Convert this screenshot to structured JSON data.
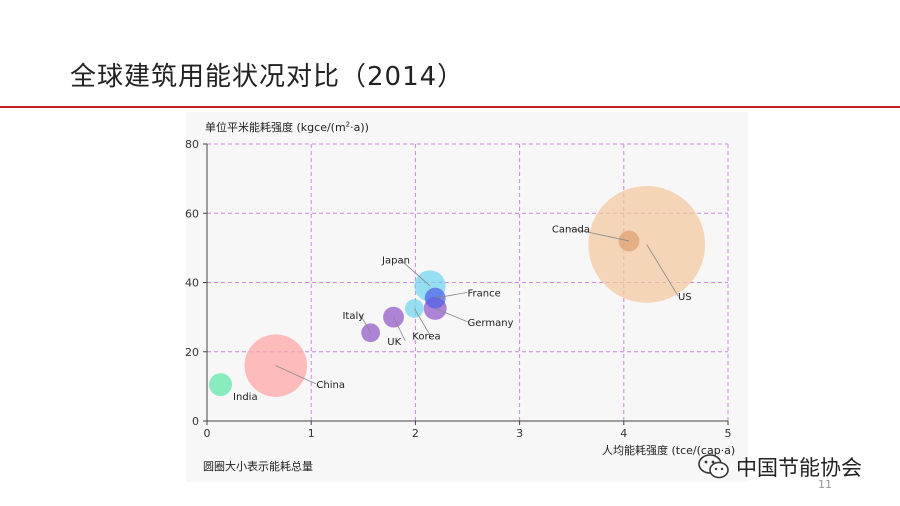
{
  "slide": {
    "title": "全球建筑用能状况对比（2014）",
    "page_number": "11"
  },
  "logo": {
    "text": "中国节能协会",
    "icon": "wechat-icon"
  },
  "note": "圆圈大小表示能耗总量",
  "chart_data": {
    "type": "scatter",
    "title": "",
    "ylabel_prefix": "单位平米能耗强度 (kgce/(m",
    "ylabel_sup": "2",
    "ylabel_suffix": "·a))",
    "xlabel": "人均能耗强度 (tce/(cap·a)",
    "xlim": [
      0,
      5
    ],
    "ylim": [
      0,
      80
    ],
    "x_ticks": [
      "0",
      "1",
      "2",
      "3",
      "4",
      "5"
    ],
    "y_ticks": [
      "0",
      "20",
      "40",
      "60",
      "80"
    ],
    "grid": true,
    "size_meaning": "total building energy consumption (relative)",
    "points": [
      {
        "name": "India",
        "x": 0.13,
        "y": 10.5,
        "size": 0.11,
        "color": "#5ee8a8"
      },
      {
        "name": "China",
        "x": 0.66,
        "y": 16.0,
        "size": 0.3,
        "color": "#ffa3a3"
      },
      {
        "name": "Italy",
        "x": 1.57,
        "y": 25.5,
        "size": 0.09,
        "color": "#9058c8"
      },
      {
        "name": "UK",
        "x": 1.79,
        "y": 30.0,
        "size": 0.1,
        "color": "#9058c8"
      },
      {
        "name": "Korea",
        "x": 1.99,
        "y": 32.5,
        "size": 0.09,
        "color": "#70d6f0"
      },
      {
        "name": "Japan",
        "x": 2.14,
        "y": 39.0,
        "size": 0.15,
        "color": "#70d6f0"
      },
      {
        "name": "France",
        "x": 2.19,
        "y": 35.5,
        "size": 0.1,
        "color": "#5060e8"
      },
      {
        "name": "Germany",
        "x": 2.19,
        "y": 32.5,
        "size": 0.11,
        "color": "#9058c8"
      },
      {
        "name": "US",
        "x": 4.22,
        "y": 51.0,
        "size": 0.56,
        "color": "#f2c89e"
      },
      {
        "name": "Canada",
        "x": 4.05,
        "y": 52.0,
        "size": 0.1,
        "color": "#e0a070"
      }
    ],
    "labels": [
      {
        "name": "India",
        "lx": 0.25,
        "ly": 6.0,
        "leader": false
      },
      {
        "name": "China",
        "lx": 1.05,
        "ly": 9.5,
        "leader": true
      },
      {
        "name": "Italy",
        "lx": 1.3,
        "ly": 29.5,
        "leader": true
      },
      {
        "name": "UK",
        "lx": 1.73,
        "ly": 22.0,
        "leader": true
      },
      {
        "name": "Korea",
        "lx": 1.97,
        "ly": 23.5,
        "leader": true
      },
      {
        "name": "Japan",
        "lx": 1.68,
        "ly": 45.5,
        "leader": true
      },
      {
        "name": "France",
        "lx": 2.5,
        "ly": 36.0,
        "leader": true
      },
      {
        "name": "Germany",
        "lx": 2.5,
        "ly": 27.5,
        "leader": true
      },
      {
        "name": "US",
        "lx": 4.52,
        "ly": 35.0,
        "leader": true
      },
      {
        "name": "Canada",
        "lx": 3.31,
        "ly": 54.5,
        "leader": true
      }
    ]
  }
}
